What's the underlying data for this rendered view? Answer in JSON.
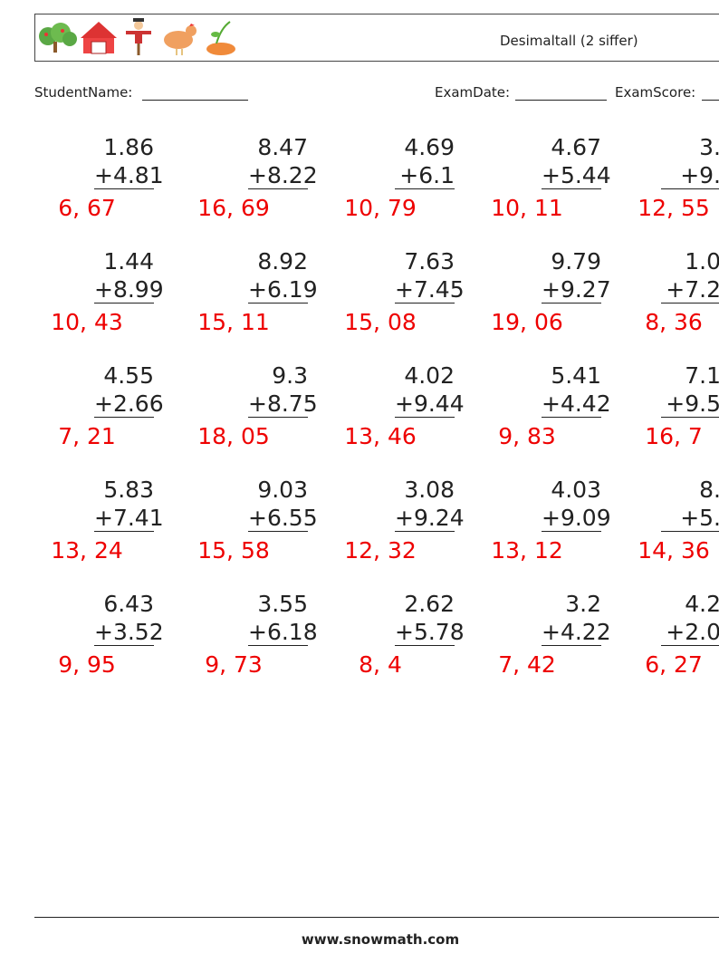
{
  "header": {
    "title": "Desimaltall (2 siffer)"
  },
  "info": {
    "student_name": "StudentName:",
    "exam_date": "ExamDate:",
    "exam_score": "ExamScore:"
  },
  "problems": [
    [
      {
        "top": "1.86",
        "addend": "+4.81",
        "answer": "6, 67"
      },
      {
        "top": "8.47",
        "addend": "+8.22",
        "answer": "16, 69"
      },
      {
        "top": "4.69",
        "addend": "+6.1",
        "answer": "10, 79"
      },
      {
        "top": "4.67",
        "addend": "+5.44",
        "answer": "10, 11"
      },
      {
        "top": "3.",
        "addend": "+9.",
        "answer": "12, 55"
      }
    ],
    [
      {
        "top": "1.44",
        "addend": "+8.99",
        "answer": "10, 43"
      },
      {
        "top": "8.92",
        "addend": "+6.19",
        "answer": "15, 11"
      },
      {
        "top": "7.63",
        "addend": "+7.45",
        "answer": "15, 08"
      },
      {
        "top": "9.79",
        "addend": "+9.27",
        "answer": "19, 06"
      },
      {
        "top": "1.0",
        "addend": "+7.2",
        "answer": "8, 36"
      }
    ],
    [
      {
        "top": "4.55",
        "addend": "+2.66",
        "answer": "7, 21"
      },
      {
        "top": "9.3",
        "addend": "+8.75",
        "answer": "18, 05"
      },
      {
        "top": "4.02",
        "addend": "+9.44",
        "answer": "13, 46"
      },
      {
        "top": "5.41",
        "addend": "+4.42",
        "answer": "9, 83"
      },
      {
        "top": "7.1",
        "addend": "+9.5",
        "answer": "16, 7"
      }
    ],
    [
      {
        "top": "5.83",
        "addend": "+7.41",
        "answer": "13, 24"
      },
      {
        "top": "9.03",
        "addend": "+6.55",
        "answer": "15, 58"
      },
      {
        "top": "3.08",
        "addend": "+9.24",
        "answer": "12, 32"
      },
      {
        "top": "4.03",
        "addend": "+9.09",
        "answer": "13, 12"
      },
      {
        "top": "8.",
        "addend": "+5.",
        "answer": "14, 36"
      }
    ],
    [
      {
        "top": "6.43",
        "addend": "+3.52",
        "answer": "9, 95"
      },
      {
        "top": "3.55",
        "addend": "+6.18",
        "answer": "9, 73"
      },
      {
        "top": "2.62",
        "addend": "+5.78",
        "answer": "8, 4"
      },
      {
        "top": "3.2",
        "addend": "+4.22",
        "answer": "7, 42"
      },
      {
        "top": "4.2",
        "addend": "+2.0",
        "answer": "6, 27"
      }
    ]
  ],
  "footer": {
    "url": "www.snowmath.com"
  }
}
